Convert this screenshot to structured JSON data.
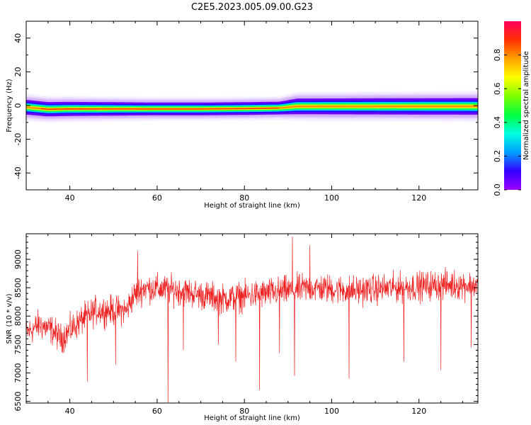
{
  "title": "C2E5.2023.005.09.00.G23",
  "chart_data": [
    {
      "type": "heatmap",
      "xlabel": "Height of straight line (km)",
      "ylabel": "Frequency (Hz)",
      "xlim": [
        30,
        133.5
      ],
      "ylim": [
        -50,
        50
      ],
      "xticks": [
        40,
        60,
        80,
        100,
        120
      ],
      "yticks": [
        -40,
        -20,
        0,
        20,
        40
      ],
      "colorbar": {
        "label": "Normalized spectral amplitude",
        "range": [
          0,
          1
        ],
        "ticks": [
          0.0,
          0.2,
          0.4,
          0.6,
          0.8
        ],
        "colormap": [
          "#9a00ff",
          "#3300ff",
          "#00a0ff",
          "#00ffe0",
          "#00ff40",
          "#80ff00",
          "#ffff00",
          "#ffa000",
          "#ff3000",
          "#ff0060"
        ]
      },
      "band": {
        "description_freq_center_hz": [
          {
            "x": 30,
            "f": -1.0
          },
          {
            "x": 32,
            "f": -1.5
          },
          {
            "x": 35,
            "f": -2.2
          },
          {
            "x": 40,
            "f": -2.0
          },
          {
            "x": 50,
            "f": -2.0
          },
          {
            "x": 60,
            "f": -2.0
          },
          {
            "x": 70,
            "f": -2.0
          },
          {
            "x": 80,
            "f": -1.8
          },
          {
            "x": 88,
            "f": -1.5
          },
          {
            "x": 90,
            "f": -1.0
          },
          {
            "x": 92,
            "f": -0.5
          },
          {
            "x": 100,
            "f": -0.5
          },
          {
            "x": 110,
            "f": -0.5
          },
          {
            "x": 120,
            "f": -0.5
          },
          {
            "x": 133.5,
            "f": -0.5
          }
        ],
        "halfwidth_hz": [
          {
            "x": 30,
            "w": 3.0
          },
          {
            "x": 60,
            "w": 2.6
          },
          {
            "x": 88,
            "w": 2.6
          },
          {
            "x": 92,
            "w": 3.2
          },
          {
            "x": 133.5,
            "w": 3.4
          }
        ]
      }
    },
    {
      "type": "line",
      "xlabel": "Height of straight line (km)",
      "ylabel": "SNR (10 * v/v)",
      "xlim": [
        30,
        133.5
      ],
      "ylim": [
        6470,
        9450
      ],
      "xticks": [
        40,
        60,
        80,
        100,
        120
      ],
      "yticks": [
        6500,
        7000,
        7500,
        8000,
        8500,
        9000
      ],
      "color": "#ee2222",
      "trend": [
        {
          "x": 30,
          "y": 7700
        },
        {
          "x": 33,
          "y": 7850
        },
        {
          "x": 36,
          "y": 7750
        },
        {
          "x": 38,
          "y": 7600
        },
        {
          "x": 40,
          "y": 7750
        },
        {
          "x": 43,
          "y": 7950
        },
        {
          "x": 46,
          "y": 8100
        },
        {
          "x": 50,
          "y": 8100
        },
        {
          "x": 53,
          "y": 8100
        },
        {
          "x": 54.5,
          "y": 8350
        },
        {
          "x": 57,
          "y": 8500
        },
        {
          "x": 65,
          "y": 8450
        },
        {
          "x": 75,
          "y": 8300
        },
        {
          "x": 85,
          "y": 8400
        },
        {
          "x": 95,
          "y": 8500
        },
        {
          "x": 105,
          "y": 8450
        },
        {
          "x": 115,
          "y": 8500
        },
        {
          "x": 125,
          "y": 8550
        },
        {
          "x": 133.5,
          "y": 8550
        }
      ],
      "noise_amplitude": 230,
      "spikes": [
        {
          "x": 44,
          "y": 6850
        },
        {
          "x": 50.5,
          "y": 7150
        },
        {
          "x": 55.5,
          "y": 9150
        },
        {
          "x": 62.5,
          "y": 6470
        },
        {
          "x": 66,
          "y": 7400
        },
        {
          "x": 74,
          "y": 7500
        },
        {
          "x": 78,
          "y": 7200
        },
        {
          "x": 83.5,
          "y": 6700
        },
        {
          "x": 88,
          "y": 7350
        },
        {
          "x": 91,
          "y": 9400
        },
        {
          "x": 91.5,
          "y": 6950
        },
        {
          "x": 95,
          "y": 9250
        },
        {
          "x": 104,
          "y": 6900
        },
        {
          "x": 116.5,
          "y": 7200
        },
        {
          "x": 125,
          "y": 7050
        },
        {
          "x": 132,
          "y": 7450
        }
      ]
    }
  ]
}
